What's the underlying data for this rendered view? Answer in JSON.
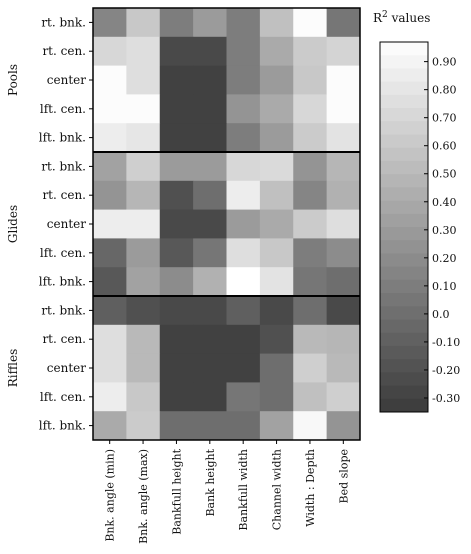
{
  "chart_data": {
    "type": "heatmap",
    "title": "",
    "colorbar_title": "R",
    "colorbar_title_sup": "2",
    "colorbar_title_suffix": " values",
    "colorbar_ticks": [
      0.9,
      0.8,
      0.7,
      0.6,
      0.5,
      0.4,
      0.3,
      0.2,
      0.1,
      0.0,
      -0.1,
      -0.2,
      -0.3
    ],
    "colorbar_tick_labels": [
      "0.90",
      "0.80",
      "0.70",
      "0.60",
      "0.50",
      "0.40",
      "0.30",
      "0.20",
      "0.10",
      "0.0",
      "-0.10",
      "-0.20",
      "-0.30"
    ],
    "vmin": -0.35,
    "vmax": 0.97,
    "columns": [
      "Bnk. angle (min)",
      "Bnk. angle (max)",
      "Bankfull height",
      "Bank height",
      "Bankfull width",
      "Channel width",
      "Width : Depth",
      "Bed slope"
    ],
    "groups": [
      {
        "name": "Pools",
        "rows": [
          {
            "label": "rt. bnk.",
            "values": [
              0.15,
              0.6,
              0.1,
              0.3,
              0.1,
              0.55,
              0.95,
              0.05
            ]
          },
          {
            "label": "rt. cen.",
            "values": [
              0.7,
              0.75,
              -0.25,
              -0.25,
              0.1,
              0.4,
              0.62,
              0.68
            ]
          },
          {
            "label": "center",
            "values": [
              0.95,
              0.75,
              -0.3,
              -0.3,
              0.1,
              0.3,
              0.6,
              0.95
            ]
          },
          {
            "label": "lft. cen.",
            "values": [
              0.95,
              0.95,
              -0.3,
              -0.3,
              0.25,
              0.4,
              0.7,
              0.95
            ]
          },
          {
            "label": "lft. bnk.",
            "values": [
              0.85,
              0.8,
              -0.3,
              -0.3,
              0.1,
              0.3,
              0.62,
              0.78
            ]
          }
        ]
      },
      {
        "name": "Glides",
        "rows": [
          {
            "label": "rt. bnk.",
            "values": [
              0.35,
              0.65,
              0.3,
              0.3,
              0.7,
              0.72,
              0.25,
              0.48
            ]
          },
          {
            "label": "rt. cen.",
            "values": [
              0.25,
              0.48,
              -0.2,
              0.0,
              0.85,
              0.55,
              0.15,
              0.45
            ]
          },
          {
            "label": "center",
            "values": [
              0.85,
              0.85,
              -0.25,
              -0.25,
              0.3,
              0.4,
              0.62,
              0.75
            ]
          },
          {
            "label": "lft. cen.",
            "values": [
              -0.05,
              0.3,
              -0.15,
              0.05,
              0.75,
              0.6,
              0.1,
              0.2
            ]
          },
          {
            "label": "lft. bnk.",
            "values": [
              -0.15,
              0.35,
              0.2,
              0.45,
              0.97,
              0.78,
              0.05,
              0.0
            ]
          }
        ]
      },
      {
        "name": "Riffles",
        "rows": [
          {
            "label": "rt. bnk.",
            "values": [
              -0.1,
              -0.2,
              -0.25,
              -0.25,
              -0.1,
              -0.25,
              0.0,
              -0.25
            ]
          },
          {
            "label": "rt. cen.",
            "values": [
              0.75,
              0.5,
              -0.3,
              -0.3,
              -0.3,
              -0.2,
              0.5,
              0.48
            ]
          },
          {
            "label": "center",
            "values": [
              0.75,
              0.5,
              -0.3,
              -0.3,
              -0.3,
              0.0,
              0.65,
              0.5
            ]
          },
          {
            "label": "lft. cen.",
            "values": [
              0.85,
              0.6,
              -0.3,
              -0.3,
              0.05,
              0.0,
              0.55,
              0.65
            ]
          },
          {
            "label": "lft. bnk.",
            "values": [
              0.4,
              0.62,
              0.0,
              0.0,
              0.0,
              0.35,
              0.92,
              0.25
            ]
          }
        ]
      }
    ],
    "grid": false
  }
}
